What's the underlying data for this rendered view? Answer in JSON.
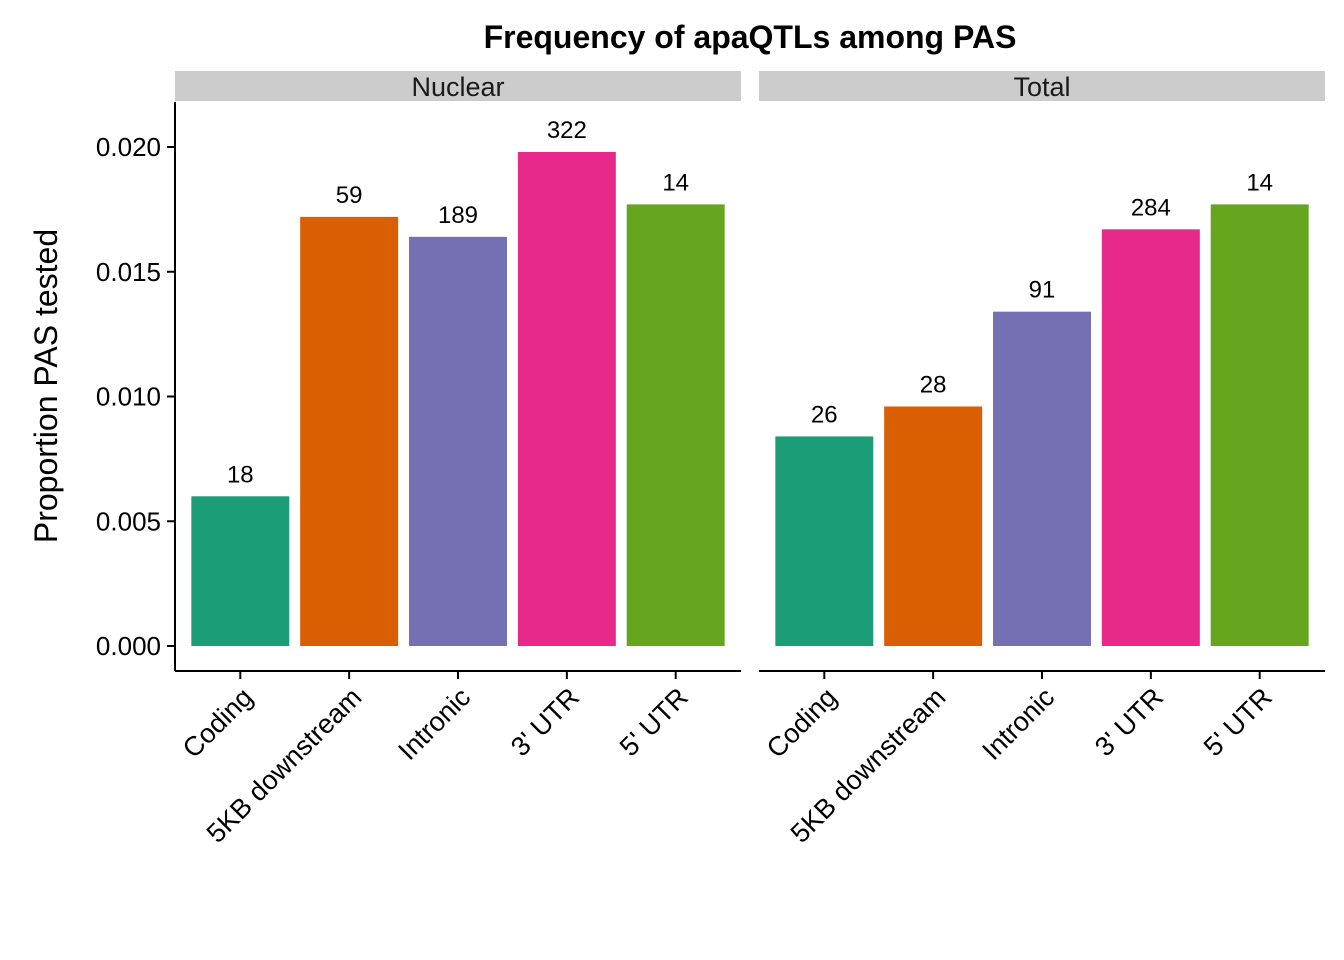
{
  "chart_data": {
    "type": "bar",
    "title": "Frequency of apaQTLs among PAS",
    "ylabel": "Proportion PAS tested",
    "xlabel": "",
    "ylim": [
      0,
      0.022
    ],
    "yticks": [
      "0.000",
      "0.005",
      "0.010",
      "0.015",
      "0.020"
    ],
    "ytick_values": [
      0,
      0.005,
      0.01,
      0.015,
      0.02
    ],
    "categories": [
      "Coding",
      "5KB downstream",
      "Intronic",
      "3' UTR",
      "5' UTR"
    ],
    "colors": [
      "#1B9E77",
      "#D95F02",
      "#7570B3",
      "#E7298A",
      "#66A61E"
    ],
    "grid": false,
    "legend": "none",
    "facets": [
      {
        "name": "Nuclear",
        "values": [
          0.006,
          0.0172,
          0.0164,
          0.0198,
          0.0177
        ],
        "labels": [
          "18",
          "59",
          "189",
          "322",
          "14"
        ]
      },
      {
        "name": "Total",
        "values": [
          0.0084,
          0.0096,
          0.0134,
          0.0167,
          0.0177
        ],
        "labels": [
          "26",
          "28",
          "91",
          "284",
          "14"
        ]
      }
    ]
  }
}
